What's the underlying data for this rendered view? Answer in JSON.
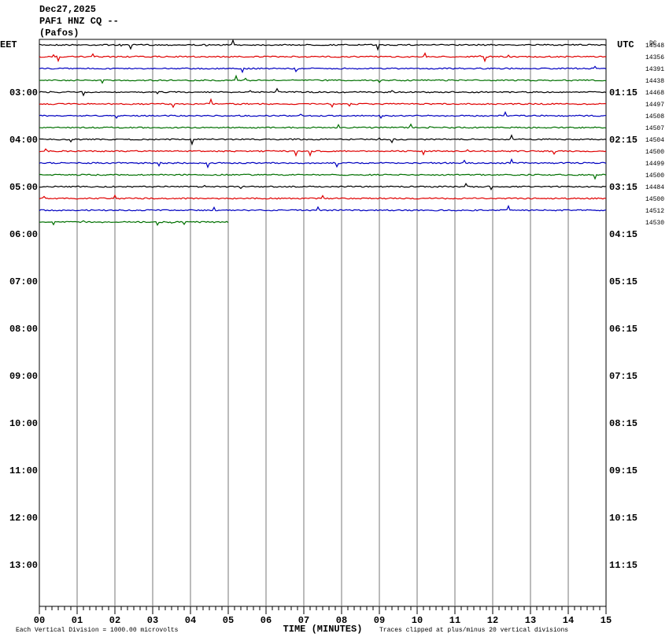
{
  "header": {
    "date": "Dec27,2025",
    "station": "PAF1 HNZ CQ --",
    "location": "(Pafos)"
  },
  "left_axis": {
    "title": "EET",
    "labels": [
      "03:00",
      "04:00",
      "05:00",
      "06:00",
      "07:00",
      "08:00",
      "09:00",
      "10:00",
      "11:00",
      "12:00",
      "13:00"
    ]
  },
  "right_axis": {
    "title": "UTC",
    "labels": [
      "01:15",
      "02:15",
      "03:15",
      "04:15",
      "05:15",
      "06:15",
      "07:15",
      "08:15",
      "09:15",
      "10:15",
      "11:15"
    ]
  },
  "dc": {
    "title": "DC",
    "values": [
      14548,
      14356,
      14391,
      14438,
      14468,
      14497,
      14508,
      14507,
      14504,
      14500,
      14499,
      14500,
      14484,
      14500,
      14512,
      14530
    ]
  },
  "x_axis": {
    "title": "TIME (MINUTES)",
    "labels": [
      "00",
      "01",
      "02",
      "03",
      "04",
      "05",
      "06",
      "07",
      "08",
      "09",
      "10",
      "11",
      "12",
      "13",
      "14",
      "15"
    ]
  },
  "footer": {
    "scale": "Each Vertical Division = 1000.00 microvolts",
    "clip": "Traces clipped at plus/minus 20 vertical divisions"
  },
  "trace_colors": [
    "#000000",
    "#e00000",
    "#0000c0",
    "#007000"
  ]
}
